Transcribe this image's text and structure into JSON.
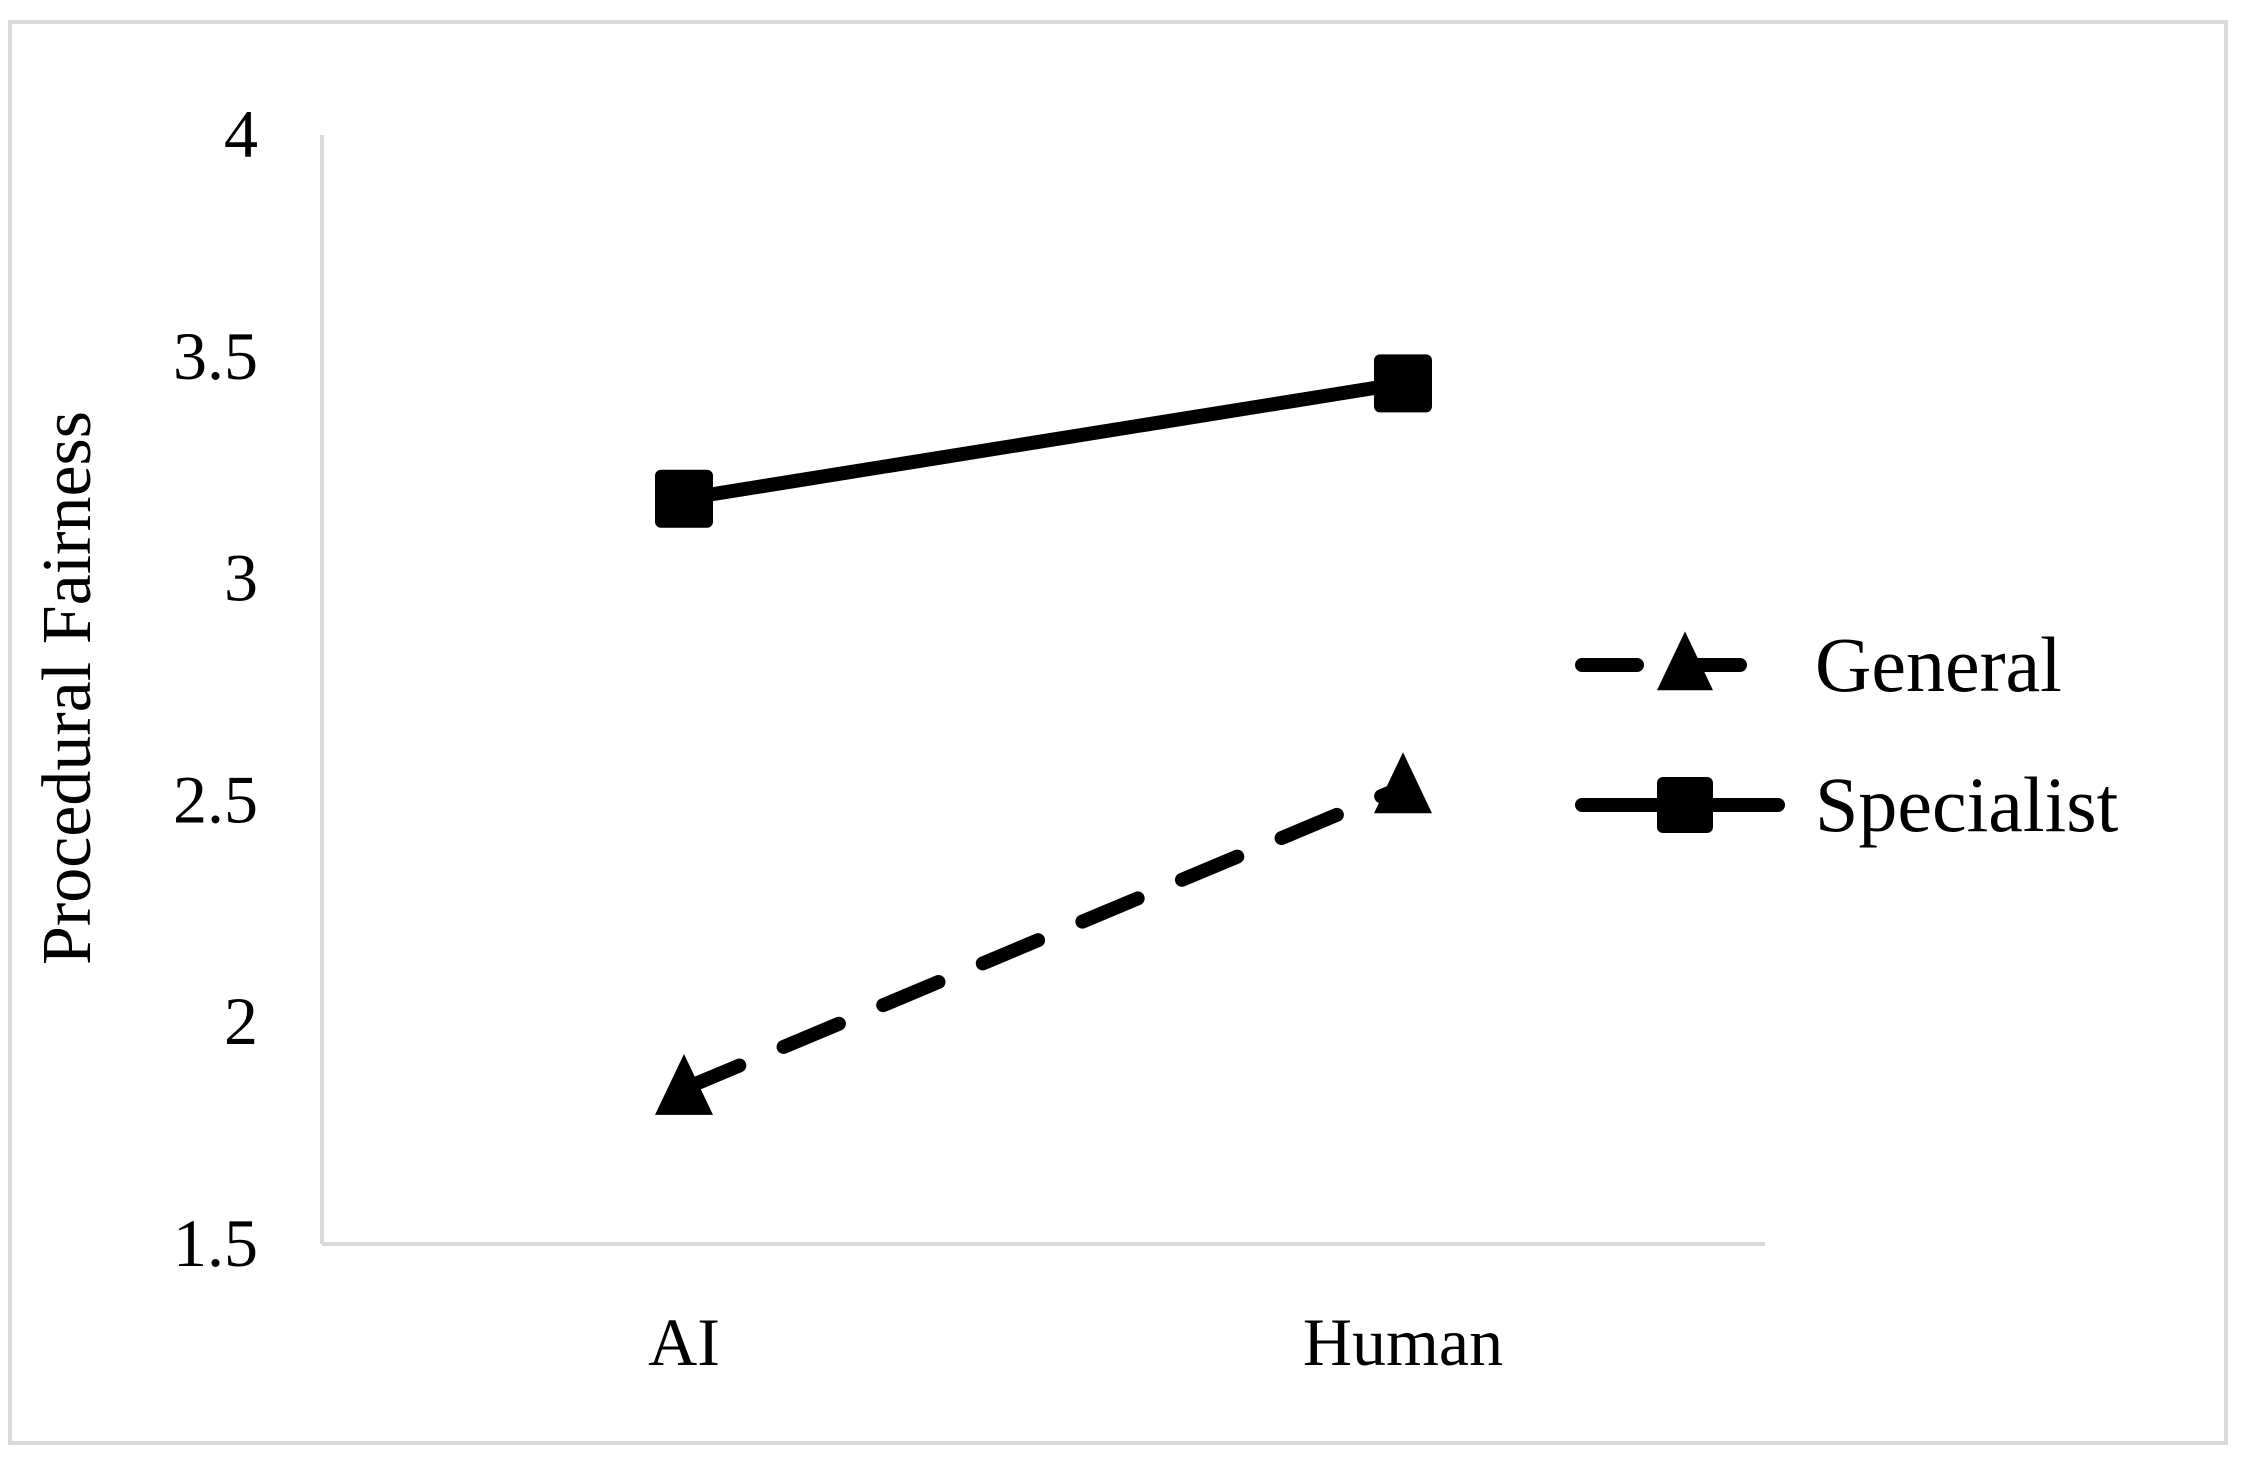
{
  "chart_data": {
    "type": "line",
    "title": "",
    "xlabel": "",
    "ylabel": "Procedural Fairness",
    "categories": [
      "AI",
      "Human"
    ],
    "ylim": [
      1.5,
      4
    ],
    "yticks": [
      "1.5",
      "2",
      "2.5",
      "3",
      "3.5",
      "4"
    ],
    "grid": false,
    "legend_position": "right",
    "series": [
      {
        "name": "General",
        "values": [
          1.85,
          2.53
        ],
        "line_style": "dashed",
        "marker": "triangle-icon",
        "color": "#000000"
      },
      {
        "name": "Specialist",
        "values": [
          3.18,
          3.44
        ],
        "line_style": "solid",
        "marker": "square-icon",
        "color": "#000000"
      }
    ]
  },
  "colors": {
    "axis": "#d9d9d9",
    "frame": "#d9d9d9",
    "ink": "#000000"
  }
}
